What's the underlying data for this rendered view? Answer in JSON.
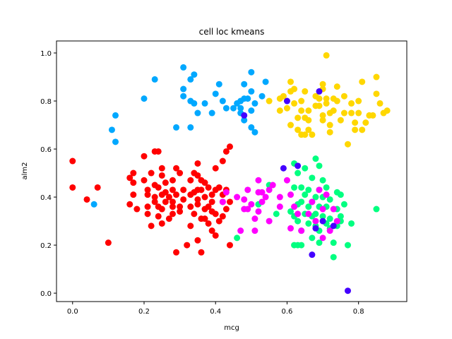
{
  "chart_data": {
    "type": "scatter",
    "title": "cell loc kmeans",
    "xlabel": "mcg",
    "ylabel": "alm2",
    "xlim": [
      -0.045,
      0.935
    ],
    "ylim": [
      -0.035,
      1.05
    ],
    "xticks": [
      0.0,
      0.2,
      0.4,
      0.6,
      0.8
    ],
    "xtick_labels": [
      "0.0",
      "0.2",
      "0.4",
      "0.6",
      "0.8"
    ],
    "yticks": [
      0.0,
      0.2,
      0.4,
      0.6,
      0.8,
      1.0
    ],
    "ytick_labels": [
      "0.0",
      "0.2",
      "0.4",
      "0.6",
      "0.8",
      "1.0"
    ],
    "grid": false,
    "legend": false,
    "series": [
      {
        "color": "#ff0000",
        "points": [
          [
            0.0,
            0.55
          ],
          [
            0.0,
            0.44
          ],
          [
            0.04,
            0.39
          ],
          [
            0.07,
            0.44
          ],
          [
            0.1,
            0.21
          ],
          [
            0.16,
            0.48
          ],
          [
            0.16,
            0.37
          ],
          [
            0.17,
            0.5
          ],
          [
            0.17,
            0.46
          ],
          [
            0.17,
            0.41
          ],
          [
            0.18,
            0.35
          ],
          [
            0.2,
            0.57
          ],
          [
            0.2,
            0.47
          ],
          [
            0.21,
            0.43
          ],
          [
            0.21,
            0.41
          ],
          [
            0.21,
            0.36
          ],
          [
            0.21,
            0.33
          ],
          [
            0.22,
            0.28
          ],
          [
            0.22,
            0.5
          ],
          [
            0.23,
            0.59
          ],
          [
            0.23,
            0.45
          ],
          [
            0.23,
            0.4
          ],
          [
            0.23,
            0.38
          ],
          [
            0.24,
            0.59
          ],
          [
            0.24,
            0.44
          ],
          [
            0.24,
            0.36
          ],
          [
            0.24,
            0.32
          ],
          [
            0.25,
            0.52
          ],
          [
            0.25,
            0.49
          ],
          [
            0.25,
            0.41
          ],
          [
            0.25,
            0.35
          ],
          [
            0.25,
            0.29
          ],
          [
            0.26,
            0.46
          ],
          [
            0.26,
            0.42
          ],
          [
            0.26,
            0.38
          ],
          [
            0.27,
            0.4
          ],
          [
            0.28,
            0.47
          ],
          [
            0.28,
            0.43
          ],
          [
            0.28,
            0.38
          ],
          [
            0.28,
            0.36
          ],
          [
            0.28,
            0.33
          ],
          [
            0.29,
            0.52
          ],
          [
            0.29,
            0.41
          ],
          [
            0.29,
            0.17
          ],
          [
            0.3,
            0.5
          ],
          [
            0.3,
            0.36
          ],
          [
            0.3,
            0.34
          ],
          [
            0.31,
            0.43
          ],
          [
            0.31,
            0.39
          ],
          [
            0.32,
            0.2
          ],
          [
            0.33,
            0.47
          ],
          [
            0.33,
            0.41
          ],
          [
            0.33,
            0.36
          ],
          [
            0.33,
            0.28
          ],
          [
            0.34,
            0.5
          ],
          [
            0.34,
            0.42
          ],
          [
            0.34,
            0.33
          ],
          [
            0.35,
            0.54
          ],
          [
            0.35,
            0.49
          ],
          [
            0.35,
            0.43
          ],
          [
            0.35,
            0.39
          ],
          [
            0.35,
            0.37
          ],
          [
            0.35,
            0.22
          ],
          [
            0.36,
            0.47
          ],
          [
            0.36,
            0.43
          ],
          [
            0.36,
            0.17
          ],
          [
            0.37,
            0.46
          ],
          [
            0.37,
            0.4
          ],
          [
            0.37,
            0.35
          ],
          [
            0.37,
            0.31
          ],
          [
            0.38,
            0.44
          ],
          [
            0.38,
            0.36
          ],
          [
            0.38,
            0.29
          ],
          [
            0.39,
            0.41
          ],
          [
            0.39,
            0.38
          ],
          [
            0.39,
            0.34
          ],
          [
            0.39,
            0.26
          ],
          [
            0.4,
            0.52
          ],
          [
            0.4,
            0.43
          ],
          [
            0.4,
            0.33
          ],
          [
            0.4,
            0.24
          ],
          [
            0.41,
            0.44
          ],
          [
            0.41,
            0.3
          ],
          [
            0.42,
            0.55
          ],
          [
            0.42,
            0.41
          ],
          [
            0.42,
            0.38
          ],
          [
            0.43,
            0.59
          ],
          [
            0.43,
            0.43
          ],
          [
            0.43,
            0.35
          ],
          [
            0.44,
            0.61
          ],
          [
            0.44,
            0.38
          ],
          [
            0.44,
            0.2
          ],
          [
            0.42,
            0.32
          ],
          [
            0.36,
            0.31
          ],
          [
            0.27,
            0.31
          ]
        ]
      },
      {
        "color": "#00a8ff",
        "points": [
          [
            0.06,
            0.37
          ],
          [
            0.11,
            0.68
          ],
          [
            0.12,
            0.74
          ],
          [
            0.12,
            0.63
          ],
          [
            0.2,
            0.81
          ],
          [
            0.23,
            0.89
          ],
          [
            0.29,
            0.69
          ],
          [
            0.31,
            0.94
          ],
          [
            0.31,
            0.85
          ],
          [
            0.31,
            0.82
          ],
          [
            0.33,
            0.89
          ],
          [
            0.33,
            0.8
          ],
          [
            0.33,
            0.69
          ],
          [
            0.34,
            0.91
          ],
          [
            0.34,
            0.79
          ],
          [
            0.35,
            0.75
          ],
          [
            0.37,
            0.79
          ],
          [
            0.39,
            0.75
          ],
          [
            0.4,
            0.83
          ],
          [
            0.41,
            0.87
          ],
          [
            0.42,
            0.8
          ],
          [
            0.43,
            0.77
          ],
          [
            0.45,
            0.77
          ],
          [
            0.46,
            0.79
          ],
          [
            0.47,
            0.8
          ],
          [
            0.47,
            0.77
          ],
          [
            0.47,
            0.75
          ],
          [
            0.48,
            0.87
          ],
          [
            0.48,
            0.81
          ],
          [
            0.48,
            0.72
          ],
          [
            0.49,
            0.81
          ],
          [
            0.5,
            0.92
          ],
          [
            0.5,
            0.84
          ],
          [
            0.5,
            0.76
          ],
          [
            0.5,
            0.69
          ],
          [
            0.51,
            0.67
          ],
          [
            0.51,
            0.79
          ],
          [
            0.53,
            0.82
          ],
          [
            0.54,
            0.88
          ]
        ]
      },
      {
        "color": "#ffd700",
        "points": [
          [
            0.55,
            0.8
          ],
          [
            0.58,
            0.81
          ],
          [
            0.58,
            0.76
          ],
          [
            0.59,
            0.82
          ],
          [
            0.6,
            0.77
          ],
          [
            0.61,
            0.88
          ],
          [
            0.61,
            0.84
          ],
          [
            0.61,
            0.7
          ],
          [
            0.62,
            0.85
          ],
          [
            0.62,
            0.79
          ],
          [
            0.63,
            0.73
          ],
          [
            0.63,
            0.68
          ],
          [
            0.64,
            0.8
          ],
          [
            0.64,
            0.76
          ],
          [
            0.64,
            0.66
          ],
          [
            0.65,
            0.84
          ],
          [
            0.65,
            0.73
          ],
          [
            0.65,
            0.66
          ],
          [
            0.66,
            0.76
          ],
          [
            0.66,
            0.72
          ],
          [
            0.67,
            0.66
          ],
          [
            0.68,
            0.78
          ],
          [
            0.68,
            0.82
          ],
          [
            0.69,
            0.78
          ],
          [
            0.69,
            0.81
          ],
          [
            0.7,
            0.87
          ],
          [
            0.7,
            0.85
          ],
          [
            0.7,
            0.74
          ],
          [
            0.71,
            0.99
          ],
          [
            0.71,
            0.81
          ],
          [
            0.71,
            0.79
          ],
          [
            0.72,
            0.75
          ],
          [
            0.72,
            0.7
          ],
          [
            0.72,
            0.67
          ],
          [
            0.73,
            0.81
          ],
          [
            0.73,
            0.76
          ],
          [
            0.74,
            0.86
          ],
          [
            0.74,
            0.8
          ],
          [
            0.75,
            0.72
          ],
          [
            0.76,
            0.75
          ],
          [
            0.76,
            0.82
          ],
          [
            0.77,
            0.62
          ],
          [
            0.78,
            0.79
          ],
          [
            0.78,
            0.75
          ],
          [
            0.79,
            0.68
          ],
          [
            0.79,
            0.71
          ],
          [
            0.8,
            0.75
          ],
          [
            0.8,
            0.8
          ],
          [
            0.81,
            0.68
          ],
          [
            0.81,
            0.88
          ],
          [
            0.82,
            0.71
          ],
          [
            0.83,
            0.74
          ],
          [
            0.84,
            0.74
          ],
          [
            0.85,
            0.83
          ],
          [
            0.85,
            0.9
          ],
          [
            0.86,
            0.79
          ],
          [
            0.87,
            0.75
          ],
          [
            0.88,
            0.76
          ],
          [
            0.7,
            0.72
          ],
          [
            0.66,
            0.68
          ]
        ]
      },
      {
        "color": "#00ff80",
        "points": [
          [
            0.46,
            0.23
          ],
          [
            0.52,
            0.37
          ],
          [
            0.55,
            0.45
          ],
          [
            0.57,
            0.33
          ],
          [
            0.61,
            0.34
          ],
          [
            0.62,
            0.54
          ],
          [
            0.62,
            0.44
          ],
          [
            0.62,
            0.32
          ],
          [
            0.62,
            0.2
          ],
          [
            0.63,
            0.5
          ],
          [
            0.63,
            0.37
          ],
          [
            0.63,
            0.3
          ],
          [
            0.63,
            0.2
          ],
          [
            0.64,
            0.44
          ],
          [
            0.64,
            0.38
          ],
          [
            0.64,
            0.26
          ],
          [
            0.64,
            0.2
          ],
          [
            0.65,
            0.52
          ],
          [
            0.65,
            0.41
          ],
          [
            0.65,
            0.33
          ],
          [
            0.66,
            0.43
          ],
          [
            0.66,
            0.36
          ],
          [
            0.66,
            0.29
          ],
          [
            0.67,
            0.48
          ],
          [
            0.67,
            0.38
          ],
          [
            0.67,
            0.32
          ],
          [
            0.67,
            0.23
          ],
          [
            0.68,
            0.56
          ],
          [
            0.68,
            0.4
          ],
          [
            0.68,
            0.33
          ],
          [
            0.68,
            0.28
          ],
          [
            0.69,
            0.53
          ],
          [
            0.69,
            0.43
          ],
          [
            0.69,
            0.36
          ],
          [
            0.69,
            0.26
          ],
          [
            0.69,
            0.21
          ],
          [
            0.7,
            0.47
          ],
          [
            0.7,
            0.4
          ],
          [
            0.7,
            0.32
          ],
          [
            0.71,
            0.44
          ],
          [
            0.71,
            0.36
          ],
          [
            0.71,
            0.29
          ],
          [
            0.72,
            0.39
          ],
          [
            0.72,
            0.31
          ],
          [
            0.72,
            0.27
          ],
          [
            0.73,
            0.21
          ],
          [
            0.73,
            0.15
          ],
          [
            0.74,
            0.42
          ],
          [
            0.74,
            0.35
          ],
          [
            0.74,
            0.28
          ],
          [
            0.75,
            0.41
          ],
          [
            0.75,
            0.32
          ],
          [
            0.75,
            0.3
          ],
          [
            0.76,
            0.37
          ],
          [
            0.77,
            0.2
          ],
          [
            0.78,
            0.29
          ],
          [
            0.85,
            0.35
          ]
        ]
      },
      {
        "color": "#ff00ff",
        "points": [
          [
            0.42,
            0.38
          ],
          [
            0.43,
            0.42
          ],
          [
            0.46,
            0.4
          ],
          [
            0.47,
            0.26
          ],
          [
            0.48,
            0.35
          ],
          [
            0.48,
            0.39
          ],
          [
            0.49,
            0.43
          ],
          [
            0.49,
            0.35
          ],
          [
            0.5,
            0.37
          ],
          [
            0.51,
            0.26
          ],
          [
            0.51,
            0.31
          ],
          [
            0.52,
            0.42
          ],
          [
            0.52,
            0.34
          ],
          [
            0.52,
            0.47
          ],
          [
            0.53,
            0.42
          ],
          [
            0.53,
            0.38
          ],
          [
            0.54,
            0.4
          ],
          [
            0.55,
            0.43
          ],
          [
            0.55,
            0.3
          ],
          [
            0.56,
            0.45
          ],
          [
            0.58,
            0.4
          ],
          [
            0.58,
            0.36
          ],
          [
            0.6,
            0.47
          ],
          [
            0.61,
            0.41
          ],
          [
            0.61,
            0.27
          ],
          [
            0.62,
            0.36
          ],
          [
            0.63,
            0.33
          ],
          [
            0.64,
            0.26
          ],
          [
            0.66,
            0.33
          ],
          [
            0.67,
            0.38
          ],
          [
            0.68,
            0.3
          ],
          [
            0.69,
            0.43
          ],
          [
            0.7,
            0.35
          ],
          [
            0.7,
            0.23
          ],
          [
            0.71,
            0.41
          ],
          [
            0.72,
            0.26
          ],
          [
            0.73,
            0.35
          ],
          [
            0.74,
            0.3
          ]
        ]
      },
      {
        "color": "#4400ff",
        "points": [
          [
            0.48,
            0.74
          ],
          [
            0.59,
            0.52
          ],
          [
            0.6,
            0.8
          ],
          [
            0.63,
            0.53
          ],
          [
            0.67,
            0.16
          ],
          [
            0.68,
            0.27
          ],
          [
            0.69,
            0.84
          ],
          [
            0.7,
            0.3
          ],
          [
            0.73,
            0.28
          ],
          [
            0.77,
            0.01
          ]
        ]
      }
    ]
  }
}
